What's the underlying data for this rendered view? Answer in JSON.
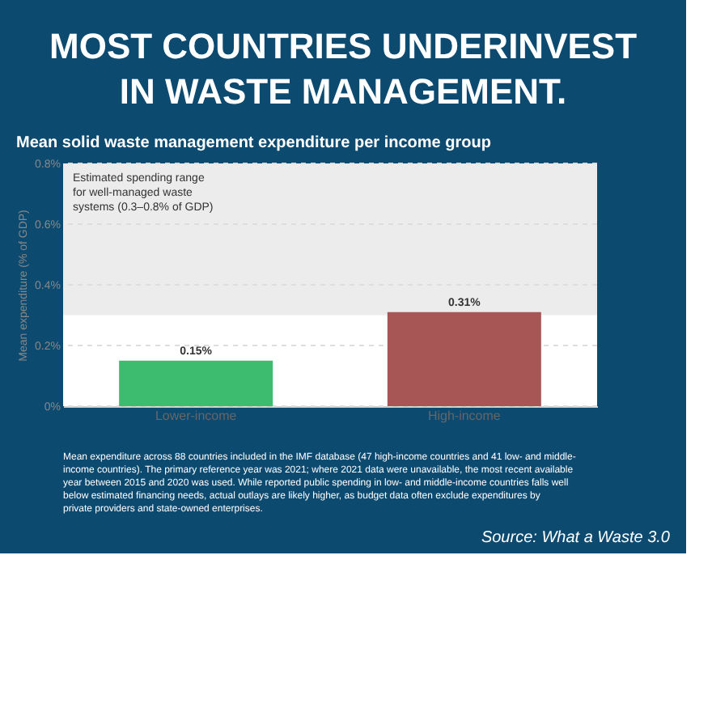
{
  "chart_data": {
    "type": "bar",
    "title": "MOST COUNTRIES UNDERINVEST IN WASTE MANAGEMENT.",
    "subtitle": "Mean solid waste management expenditure per income group",
    "ylabel": "Mean expenditure (% of GDP)",
    "categories": [
      "Lower-income",
      "High-income"
    ],
    "values": [
      0.15,
      0.31
    ],
    "colors": [
      "#3dbb6e",
      "#a85556"
    ],
    "value_labels": [
      "0.15%",
      "0.31%"
    ],
    "ylim": [
      0,
      0.8
    ],
    "yticks": [
      {
        "value": 0,
        "label": "0%"
      },
      {
        "value": 0.2,
        "label": "0.2%"
      },
      {
        "value": 0.4,
        "label": "0.4%"
      },
      {
        "value": 0.6,
        "label": "0.6%"
      },
      {
        "value": 0.8,
        "label": "0.8%"
      }
    ],
    "grid": "y",
    "bands": [
      {
        "axis": "y",
        "from": 0.3,
        "to": 0.8,
        "label": "Estimated spending range for well-managed waste systems (0.3–0.8% of GDP)",
        "color": "#ececec"
      }
    ],
    "annotations": [
      "Mean expenditure across 88 countries included in the IMF database (47 high-income countries and 41 low- and middle-income countries). The primary reference year was 2021; where 2021 data were unavailable, the most recent available year between 2015 and 2020 was used. While reported public spending in low- and middle-income countries falls well below estimated financing needs, actual outlays are likely higher, as budget data often exclude expenditures by private providers and state-owned enterprises.",
      "Source: What a Waste 3.0"
    ]
  }
}
